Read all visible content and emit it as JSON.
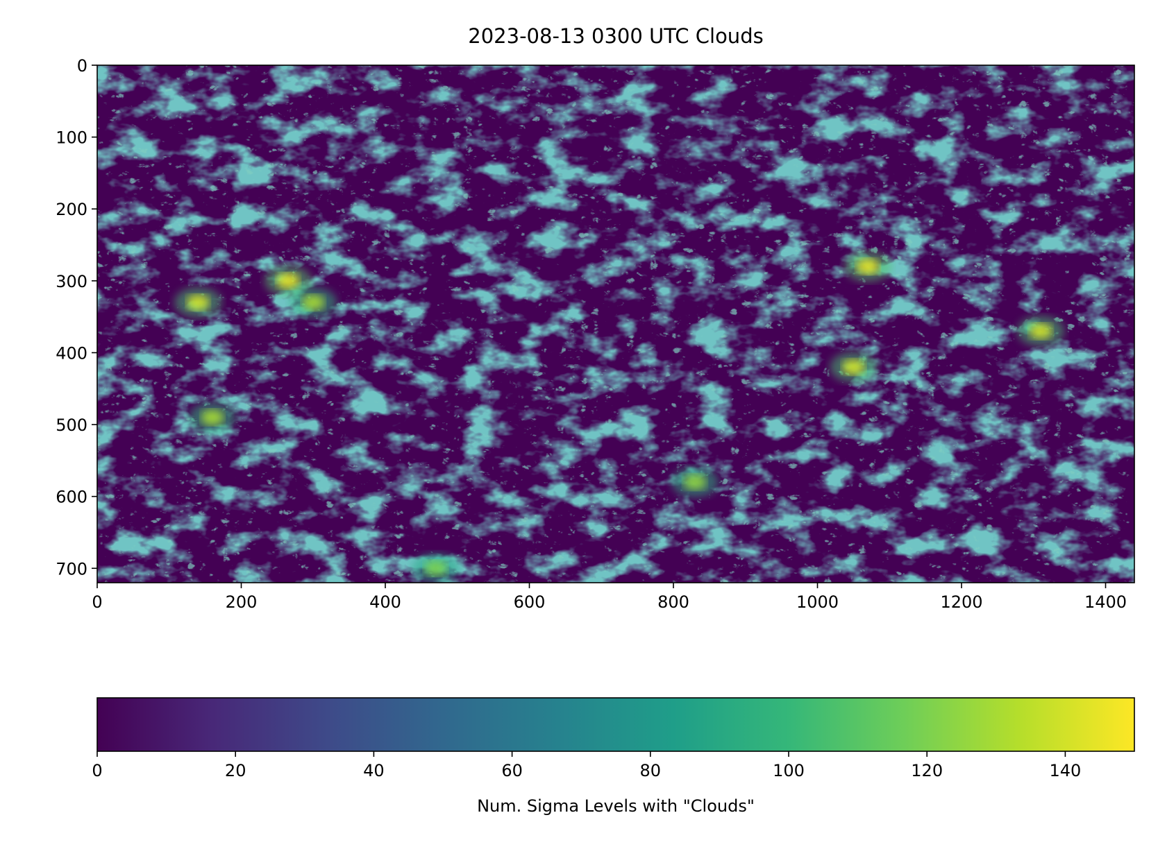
{
  "chart_data": [
    {
      "type": "heatmap",
      "title": "2023-08-13 0300 UTC Clouds",
      "xlabel": "",
      "ylabel": "",
      "xlim": [
        0,
        1440
      ],
      "ylim": [
        720,
        0
      ],
      "xticks": [
        0,
        200,
        400,
        600,
        800,
        1000,
        1200,
        1400
      ],
      "yticks": [
        0,
        100,
        200,
        300,
        400,
        500,
        600,
        700
      ],
      "xtick_labels": [
        "0",
        "200",
        "400",
        "600",
        "800",
        "1000",
        "1200",
        "1400"
      ],
      "ytick_labels": [
        "0",
        "100",
        "200",
        "300",
        "400",
        "500",
        "600",
        "700"
      ],
      "colormap": "viridis",
      "value_range": [
        0,
        150
      ],
      "grid": false,
      "bright_features": [
        {
          "x": 140,
          "y": 330,
          "value": 140
        },
        {
          "x": 265,
          "y": 300,
          "value": 145
        },
        {
          "x": 300,
          "y": 330,
          "value": 130
        },
        {
          "x": 1070,
          "y": 280,
          "value": 145
        },
        {
          "x": 1050,
          "y": 420,
          "value": 140
        },
        {
          "x": 1310,
          "y": 370,
          "value": 140
        },
        {
          "x": 160,
          "y": 490,
          "value": 130
        },
        {
          "x": 830,
          "y": 580,
          "value": 125
        },
        {
          "x": 470,
          "y": 700,
          "value": 120
        }
      ]
    },
    {
      "type": "colorbar",
      "label": "Num. Sigma Levels with \"Clouds\"",
      "range": [
        0,
        150
      ],
      "ticks": [
        0,
        20,
        40,
        60,
        80,
        100,
        120,
        140
      ],
      "tick_labels": [
        "0",
        "20",
        "40",
        "60",
        "80",
        "100",
        "120",
        "140"
      ],
      "colormap": "viridis",
      "colormap_stops": [
        "#440154",
        "#482878",
        "#3e4a89",
        "#31688e",
        "#26828e",
        "#1f9e89",
        "#35b779",
        "#6ece58",
        "#b5de2b",
        "#fde725"
      ]
    }
  ]
}
